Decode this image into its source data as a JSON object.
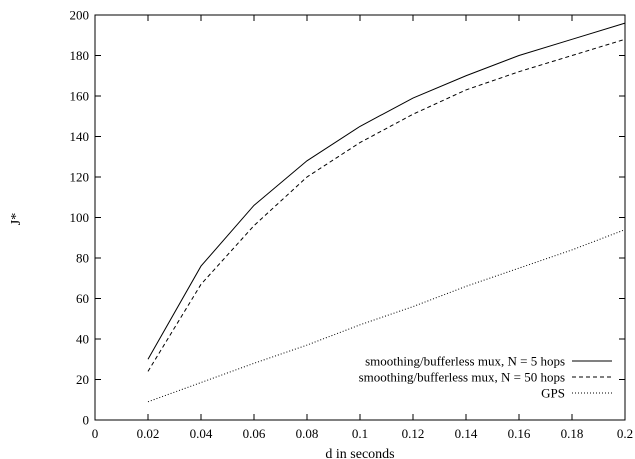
{
  "chart_data": {
    "type": "line",
    "title": "",
    "xlabel": "d in seconds",
    "ylabel": "J*",
    "xlim": [
      0,
      0.2
    ],
    "ylim": [
      0,
      200
    ],
    "xticks": [
      "0",
      "0.02",
      "0.04",
      "0.06",
      "0.08",
      "0.1",
      "0.12",
      "0.14",
      "0.16",
      "0.18",
      "0.2"
    ],
    "yticks": [
      "0",
      "20",
      "40",
      "60",
      "80",
      "100",
      "120",
      "140",
      "160",
      "180",
      "200"
    ],
    "grid": false,
    "legend_position": "bottom-right",
    "series": [
      {
        "name": "smoothing/bufferless mux, N = 5 hops",
        "style": "solid",
        "x": [
          0.02,
          0.04,
          0.06,
          0.08,
          0.1,
          0.12,
          0.14,
          0.16,
          0.18,
          0.2
        ],
        "y": [
          30,
          76,
          106,
          128,
          145,
          159,
          170,
          180,
          188,
          196
        ]
      },
      {
        "name": "smoothing/bufferless mux, N = 50 hops",
        "style": "dashed",
        "x": [
          0.02,
          0.04,
          0.06,
          0.08,
          0.1,
          0.12,
          0.14,
          0.16,
          0.18,
          0.2
        ],
        "y": [
          24,
          67,
          96,
          120,
          137,
          151,
          163,
          172,
          180,
          188
        ]
      },
      {
        "name": "GPS",
        "style": "dotted",
        "x": [
          0.02,
          0.04,
          0.06,
          0.08,
          0.1,
          0.12,
          0.14,
          0.16,
          0.18,
          0.2
        ],
        "y": [
          9,
          18.5,
          28,
          37,
          47,
          56,
          66,
          75,
          84,
          94
        ]
      }
    ]
  }
}
